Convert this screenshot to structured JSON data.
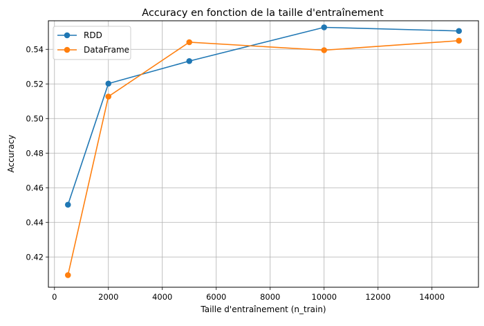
{
  "chart_data": {
    "type": "line",
    "title": "Accuracy en fonction de la taille d'entraînement",
    "xlabel": "Taille d'entraînement (n_train)",
    "ylabel": "Accuracy",
    "x": [
      500,
      2000,
      5000,
      10000,
      15000
    ],
    "xlim": [
      -225,
      15725
    ],
    "ylim": [
      0.4025,
      0.5565
    ],
    "xticks": [
      0,
      2000,
      4000,
      6000,
      8000,
      10000,
      12000,
      14000
    ],
    "xtick_labels": [
      "0",
      "2000",
      "4000",
      "6000",
      "8000",
      "10000",
      "12000",
      "14000"
    ],
    "yticks": [
      0.42,
      0.44,
      0.46,
      0.48,
      0.5,
      0.52,
      0.54
    ],
    "ytick_labels": [
      "0.42",
      "0.44",
      "0.46",
      "0.48",
      "0.50",
      "0.52",
      "0.54"
    ],
    "grid": true,
    "legend_position": "top-left",
    "series": [
      {
        "name": "RDD",
        "color": "#1f77b4",
        "marker": "circle",
        "values": [
          0.4502,
          0.5202,
          0.5332,
          0.5527,
          0.5506
        ]
      },
      {
        "name": "DataFrame",
        "color": "#ff7f0e",
        "marker": "circle",
        "values": [
          0.4095,
          0.5127,
          0.5441,
          0.5395,
          0.545
        ]
      }
    ]
  }
}
